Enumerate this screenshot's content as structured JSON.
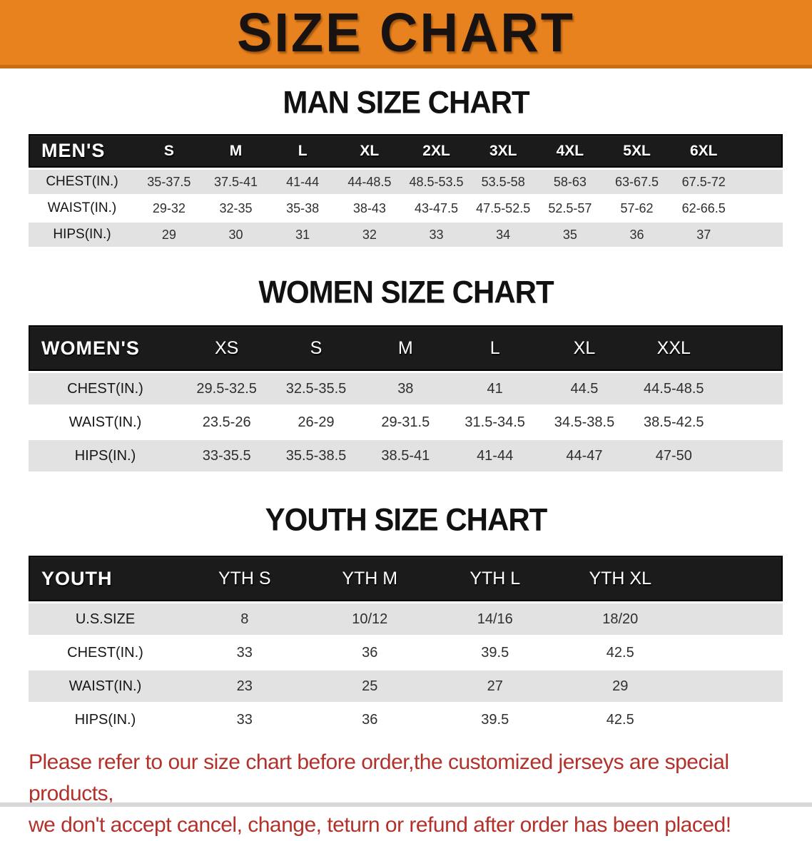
{
  "banner": {
    "title": "SIZE CHART",
    "bg_color": "#E8821E",
    "edge_color": "#C96E15",
    "text_color": "#181310"
  },
  "colors": {
    "header_black": "#1B1B1B",
    "row_gray": "#E2E2E2",
    "disclaimer_red": "#B3312B"
  },
  "chart_data": [
    {
      "type": "table",
      "title": "MAN SIZE CHART",
      "columns": [
        "MEN'S",
        "S",
        "M",
        "L",
        "XL",
        "2XL",
        "3XL",
        "4XL",
        "5XL",
        "6XL"
      ],
      "rows": [
        {
          "label": "CHEST(IN.)",
          "values": [
            "35-37.5",
            "37.5-41",
            "41-44",
            "44-48.5",
            "48.5-53.5",
            "53.5-58",
            "58-63",
            "63-67.5",
            "67.5-72"
          ]
        },
        {
          "label": "WAIST(IN.)",
          "values": [
            "29-32",
            "32-35",
            "35-38",
            "38-43",
            "43-47.5",
            "47.5-52.5",
            "52.5-57",
            "57-62",
            "62-66.5"
          ]
        },
        {
          "label": "HIPS(IN.)",
          "values": [
            "29",
            "30",
            "31",
            "32",
            "33",
            "34",
            "35",
            "36",
            "37"
          ]
        }
      ]
    },
    {
      "type": "table",
      "title": "WOMEN SIZE CHART",
      "columns": [
        "WOMEN'S",
        "XS",
        "S",
        "M",
        "L",
        "XL",
        "XXL"
      ],
      "rows": [
        {
          "label": "CHEST(IN.)",
          "values": [
            "29.5-32.5",
            "32.5-35.5",
            "38",
            "41",
            "44.5",
            "44.5-48.5"
          ]
        },
        {
          "label": "WAIST(IN.)",
          "values": [
            "23.5-26",
            "26-29",
            "29-31.5",
            "31.5-34.5",
            "34.5-38.5",
            "38.5-42.5"
          ]
        },
        {
          "label": "HIPS(IN.)",
          "values": [
            "33-35.5",
            "35.5-38.5",
            "38.5-41",
            "41-44",
            "44-47",
            "47-50"
          ]
        }
      ]
    },
    {
      "type": "table",
      "title": "YOUTH SIZE CHART",
      "columns": [
        "YOUTH",
        "YTH S",
        "YTH M",
        "YTH L",
        "YTH XL"
      ],
      "rows": [
        {
          "label": "U.S.SIZE",
          "values": [
            "8",
            "10/12",
            "14/16",
            "18/20"
          ]
        },
        {
          "label": "CHEST(IN.)",
          "values": [
            "33",
            "36",
            "39.5",
            "42.5"
          ]
        },
        {
          "label": "WAIST(IN.)",
          "values": [
            "23",
            "25",
            "27",
            "29"
          ]
        },
        {
          "label": "HIPS(IN.)",
          "values": [
            "33",
            "36",
            "39.5",
            "42.5"
          ]
        }
      ]
    }
  ],
  "disclaimer": {
    "line1": "Please refer to our size chart before order,the customized jerseys are special products,",
    "line2": "we don't accept cancel, change, teturn or refund after order has been placed!"
  }
}
